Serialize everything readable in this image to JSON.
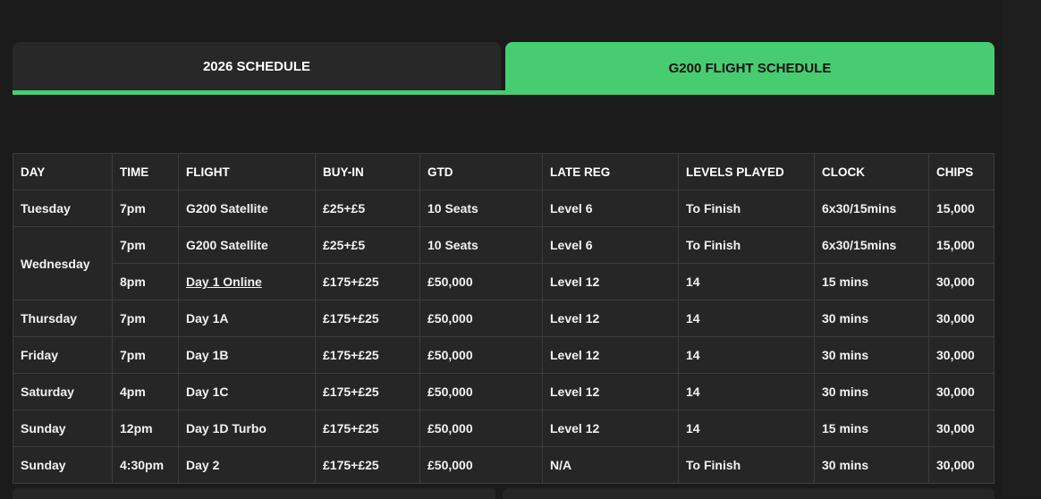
{
  "tabs": [
    {
      "label": "2026 SCHEDULE",
      "active": false
    },
    {
      "label": "G200 FLIGHT SCHEDULE",
      "active": true
    }
  ],
  "colors": {
    "accent": "#48cc72",
    "background": "#1b1b1b",
    "table": "#262626"
  },
  "table": {
    "headers": [
      "DAY",
      "TIME",
      "FLIGHT",
      "BUY-IN",
      "GTD",
      "LATE REG",
      "LEVELS PLAYED",
      "CLOCK",
      "CHIPS"
    ],
    "rows": [
      {
        "day": "Tuesday",
        "time": "7pm",
        "flight": "G200 Satellite",
        "buyin": "£25+£5",
        "gtd": "10 Seats",
        "latereg": "Level 6",
        "levels": "To Finish",
        "clock": "6x30/15mins",
        "chips": "15,000"
      },
      {
        "day": "Wednesday",
        "time": "7pm",
        "flight": "G200 Satellite",
        "buyin": "£25+£5",
        "gtd": "10 Seats",
        "latereg": "Level 6",
        "levels": "To Finish",
        "clock": "6x30/15mins",
        "chips": "15,000"
      },
      {
        "day": "",
        "time": "8pm",
        "flight": "Day 1 Online",
        "buyin": "£175+£25",
        "gtd": "£50,000",
        "latereg": "Level 12",
        "levels": "14",
        "clock": "15 mins",
        "chips": "30,000",
        "link": true
      },
      {
        "day": "Thursday",
        "time": "7pm",
        "flight": "Day 1A",
        "buyin": "£175+£25",
        "gtd": "£50,000",
        "latereg": "Level 12",
        "levels": "14",
        "clock": "30 mins",
        "chips": "30,000"
      },
      {
        "day": "Friday",
        "time": "7pm",
        "flight": "Day 1B",
        "buyin": "£175+£25",
        "gtd": "£50,000",
        "latereg": "Level 12",
        "levels": "14",
        "clock": "30 mins",
        "chips": "30,000"
      },
      {
        "day": "Saturday",
        "time": "4pm",
        "flight": "Day 1C",
        "buyin": "£175+£25",
        "gtd": "£50,000",
        "latereg": "Level 12",
        "levels": "14",
        "clock": "30 mins",
        "chips": "30,000"
      },
      {
        "day": "Sunday",
        "time": "12pm",
        "flight": "Day 1D Turbo",
        "buyin": "£175+£25",
        "gtd": "£50,000",
        "latereg": "Level 12",
        "levels": "14",
        "clock": "15 mins",
        "chips": "30,000"
      },
      {
        "day": "Sunday",
        "time": "4:30pm",
        "flight": "Day 2",
        "buyin": "£175+£25",
        "gtd": "£50,000",
        "latereg": "N/A",
        "levels": "To Finish",
        "clock": "30 mins",
        "chips": "30,000"
      }
    ]
  }
}
